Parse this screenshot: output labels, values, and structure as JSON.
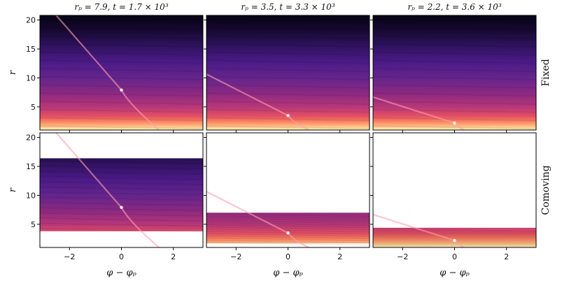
{
  "chart_data": {
    "type": "heatmap",
    "colormap": "magma",
    "columns": [
      {
        "title": "rₚ = 7.9,   t = 1.7 × 10³",
        "r_p": 7.9,
        "t": "1.7 × 10³"
      },
      {
        "title": "rₚ = 3.5,   t = 3.3 × 10³",
        "r_p": 3.5,
        "t": "3.3 × 10³"
      },
      {
        "title": "rₚ = 2.2,   t = 3.6 × 10³",
        "r_p": 2.2,
        "t": "3.6 × 10³"
      }
    ],
    "rows": [
      {
        "label": "Fixed",
        "ylabel": "r",
        "r_ranges": [
          [
            1.0,
            20.8
          ],
          [
            1.0,
            20.8
          ],
          [
            1.0,
            20.8
          ]
        ]
      },
      {
        "label": "Comoving",
        "ylabel": "r",
        "r_ranges": [
          [
            3.8,
            16.4
          ],
          [
            1.7,
            7.0
          ],
          [
            1.1,
            4.4
          ]
        ]
      }
    ],
    "xlabel": "φ − φₚ",
    "xlim": [
      -3.14,
      3.14
    ],
    "ylim": [
      1.0,
      20.8
    ],
    "xticks": [
      -2,
      0,
      2
    ],
    "yticks": [
      5,
      10,
      15,
      20
    ],
    "xtick_labels": [
      "−2",
      "0",
      "2"
    ],
    "ytick_labels": [
      "5",
      "10",
      "15",
      "20"
    ]
  }
}
